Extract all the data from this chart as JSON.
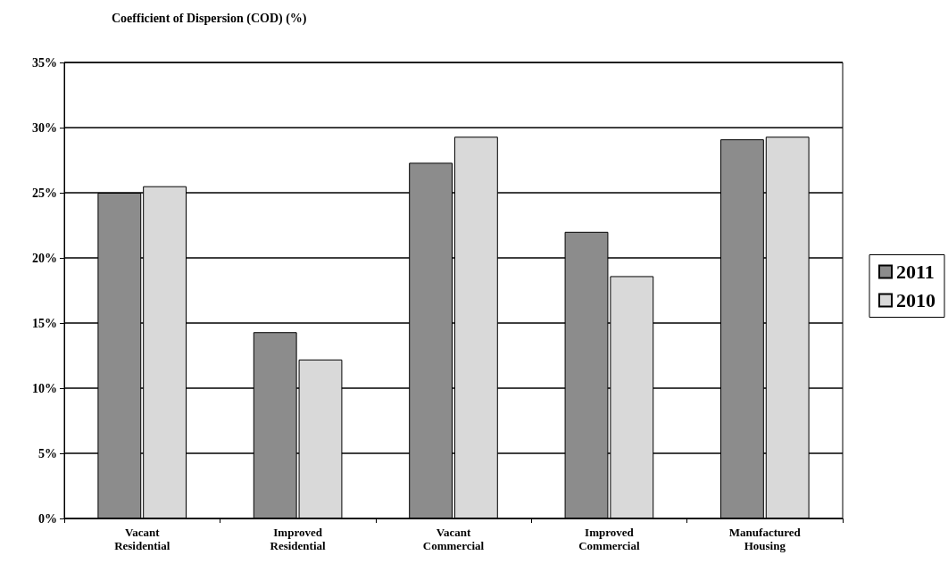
{
  "chart_data": {
    "type": "bar",
    "title": "Coefficient of Dispersion (COD) (%)",
    "categories": [
      "Vacant\nResidential",
      "Improved\nResidential",
      "Vacant\nCommercial",
      "Improved\nCommercial",
      "Manufactured\nHousing"
    ],
    "series": [
      {
        "name": "2011",
        "color": "#8c8c8c",
        "values": [
          25.0,
          14.3,
          27.3,
          22.0,
          29.1
        ]
      },
      {
        "name": "2010",
        "color": "#d9d9d9",
        "values": [
          25.5,
          12.2,
          29.3,
          18.6,
          29.3
        ]
      }
    ],
    "ylim": [
      0,
      35
    ],
    "yticks": [
      {
        "value": 0,
        "label": "0%"
      },
      {
        "value": 5,
        "label": "5%"
      },
      {
        "value": 10,
        "label": "10%"
      },
      {
        "value": 15,
        "label": "15%"
      },
      {
        "value": 20,
        "label": "20%"
      },
      {
        "value": 25,
        "label": "25%"
      },
      {
        "value": 30,
        "label": "30%"
      },
      {
        "value": 35,
        "label": "35%"
      }
    ],
    "grid": "y",
    "legend": "right"
  }
}
